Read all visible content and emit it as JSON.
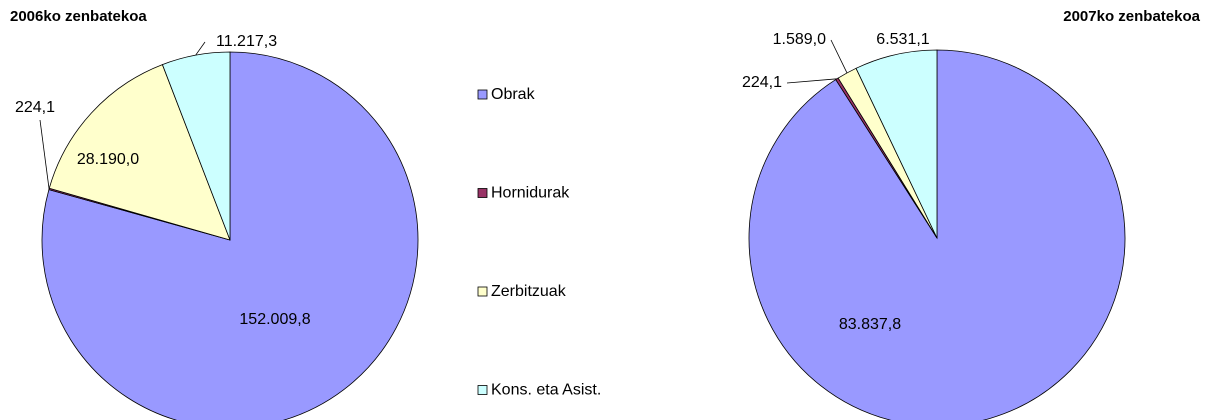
{
  "chart_data": [
    {
      "type": "pie",
      "title": "2006ko zenbatekoa",
      "categories": [
        "Obrak",
        "Hornidurak",
        "Zerbitzuak",
        "Kons. eta  Asist."
      ],
      "values": [
        152009.8,
        224.1,
        28190.0,
        11217.3
      ],
      "value_labels": [
        "152.009,8",
        "224,1",
        "28.190,0",
        "11.217,3"
      ],
      "colors": [
        "#9999ff",
        "#993366",
        "#ffffcc",
        "#ccffff"
      ]
    },
    {
      "type": "pie",
      "title": "2007ko zenbatekoa",
      "categories": [
        "Obrak",
        "Hornidurak",
        "Zerbitzuak",
        "Kons. eta  Asist."
      ],
      "values": [
        83837.8,
        224.1,
        1589.0,
        6531.1
      ],
      "value_labels": [
        "83.837,8",
        "224,1",
        "1.589,0",
        "6.531,1"
      ],
      "colors": [
        "#9999ff",
        "#993366",
        "#ffffcc",
        "#ccffff"
      ]
    }
  ]
}
